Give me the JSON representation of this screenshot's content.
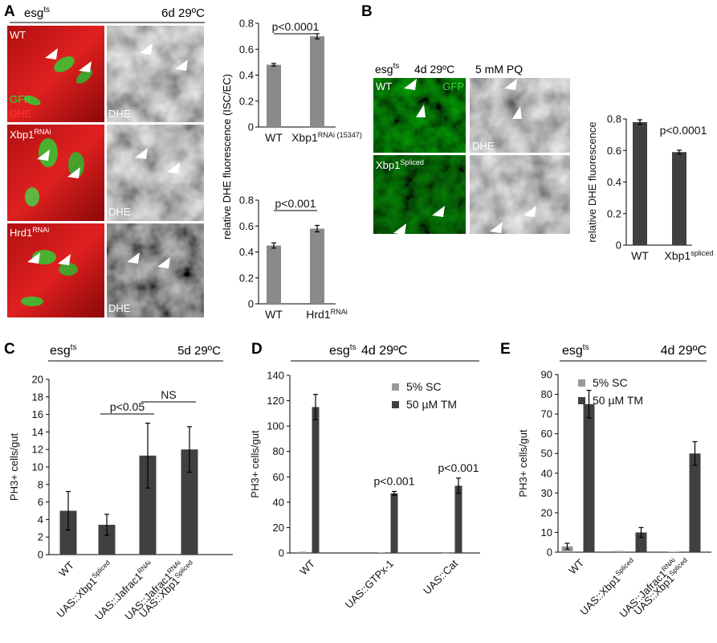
{
  "panels": {
    "A": {
      "letter": "A",
      "header_left": "esg",
      "header_left_sup": "ts",
      "header_right": "6d 29ºC",
      "images": [
        {
          "left_label": "WT",
          "left_label_sup": "",
          "right_label": "DHE",
          "extra_labels": [
            "GFP",
            "DHE"
          ]
        },
        {
          "left_label": "Xbp1",
          "left_label_sup": "RNAi",
          "right_label": "DHE",
          "extra_labels": []
        },
        {
          "left_label": "Hrd1",
          "left_label_sup": "RNAi",
          "right_label": "DHE",
          "extra_labels": []
        }
      ]
    },
    "B": {
      "letter": "B",
      "header_left": "esg",
      "header_left_sup": "ts",
      "header_mid": "4d 29ºC",
      "header_right": "5 mM PQ",
      "images": [
        {
          "left_label": "WT",
          "left_label_sup": "",
          "left_extra": "GFP",
          "right_label": "DHE"
        },
        {
          "left_label": "Xbp1",
          "left_label_sup": "Spliced",
          "left_extra": "",
          "right_label": ""
        }
      ]
    },
    "C": {
      "letter": "C",
      "header_left": "esg",
      "header_left_sup": "ts",
      "header_right": "5d 29ºC"
    },
    "D": {
      "letter": "D",
      "header_left": "esg",
      "header_left_sup": "ts",
      "header_right": "4d 29ºC"
    },
    "E": {
      "letter": "E",
      "header_left": "esg",
      "header_left_sup": "ts",
      "header_right": "4d 29ºC"
    }
  },
  "shared_ylabel_A": "relative DHE  fluorescence (ISC/EC)",
  "chart_data": [
    {
      "id": "A1",
      "type": "bar",
      "categories": [
        {
          "main": "WT",
          "sup": ""
        },
        {
          "main": "Xbp1",
          "sup": "RNAi (15347)"
        }
      ],
      "values": [
        0.48,
        0.7
      ],
      "errors": [
        0.01,
        0.02
      ],
      "ylim": [
        0,
        0.8
      ],
      "yticks": [
        "0",
        "0.2",
        "0.4",
        "0.6",
        "0.8"
      ],
      "annotations": [
        {
          "text": "p<0.0001",
          "from": 0,
          "to": 1
        }
      ],
      "bar_color": "#8a8a8a"
    },
    {
      "id": "A2",
      "type": "bar",
      "categories": [
        {
          "main": "WT",
          "sup": ""
        },
        {
          "main": "Hrd1",
          "sup": "RNAi"
        }
      ],
      "values": [
        0.45,
        0.58
      ],
      "errors": [
        0.02,
        0.025
      ],
      "ylim": [
        0,
        0.8
      ],
      "yticks": [
        "0",
        "0.2",
        "0.4",
        "0.6",
        "0.8"
      ],
      "annotations": [
        {
          "text": "p<0.001",
          "from": 0,
          "to": 1
        }
      ],
      "bar_color": "#8a8a8a"
    },
    {
      "id": "B",
      "type": "bar",
      "categories": [
        {
          "main": "WT",
          "sup": ""
        },
        {
          "main": "Xbp1",
          "sup": "spliced"
        }
      ],
      "values": [
        0.78,
        0.59
      ],
      "errors": [
        0.015,
        0.012
      ],
      "ylim": [
        0,
        0.8
      ],
      "yticks": [
        "0",
        "0.2",
        "0.4",
        "0.6",
        "0.8"
      ],
      "ylabel": "relative DHE fluorescence",
      "annotations": [
        {
          "text": "p<0.0001",
          "over": 1
        }
      ],
      "bar_color": "#404040"
    },
    {
      "id": "C",
      "type": "bar",
      "categories": [
        {
          "lines": [
            {
              "main": "WT",
              "sup": ""
            }
          ]
        },
        {
          "lines": [
            {
              "main": "UAS::Xbp1",
              "sup": "Spliced"
            }
          ]
        },
        {
          "lines": [
            {
              "main": "UAS::Jafrac1",
              "sup": "RNAi"
            }
          ]
        },
        {
          "lines": [
            {
              "main": "UAS::Jafrac1",
              "sup": "RNAi"
            },
            {
              "main": "UAS::Xbp1",
              "sup": "Spliced"
            }
          ]
        }
      ],
      "values": [
        5,
        3.4,
        11.3,
        12
      ],
      "errors": [
        2.2,
        1.2,
        3.7,
        2.6
      ],
      "ylim": [
        0,
        20
      ],
      "yticks": [
        "0",
        "2",
        "4",
        "6",
        "8",
        "10",
        "12",
        "14",
        "16",
        "18",
        "20"
      ],
      "ylabel": "PH3+ cells/gut",
      "annotations": [
        {
          "text": "p<0.05",
          "from": 1,
          "to": 2
        },
        {
          "text": "NS",
          "from": 2,
          "to": 3
        }
      ],
      "bar_color": "#404040"
    },
    {
      "id": "D",
      "type": "bar",
      "categories": [
        {
          "lines": [
            {
              "main": "WT",
              "sup": ""
            }
          ]
        },
        {
          "lines": [
            {
              "main": "UAS::GTPx-1",
              "sup": ""
            }
          ]
        },
        {
          "lines": [
            {
              "main": "UAS::Cat",
              "sup": ""
            }
          ]
        }
      ],
      "series": [
        {
          "name": "5% SC",
          "color": "#999999",
          "values": [
            1,
            0.5,
            0
          ],
          "errors": [
            0,
            0,
            0
          ]
        },
        {
          "name": "50 µM TM",
          "color": "#404040",
          "values": [
            115,
            47,
            53
          ],
          "errors": [
            10,
            1.5,
            6
          ]
        }
      ],
      "ylim": [
        0,
        140
      ],
      "yticks": [
        "0",
        "20",
        "40",
        "60",
        "80",
        "100",
        "120",
        "140"
      ],
      "ylabel": "PH3+ cells/gut",
      "annotations": [
        {
          "text": "p<0.001",
          "over": 1,
          "series": 1
        },
        {
          "text": "p<0.001",
          "over": 2,
          "series": 1
        }
      ],
      "legend": "top-right"
    },
    {
      "id": "E",
      "type": "bar",
      "categories": [
        {
          "lines": [
            {
              "main": "WT",
              "sup": ""
            }
          ]
        },
        {
          "lines": [
            {
              "main": "UAS::Xbp1",
              "sup": "Spliced"
            }
          ]
        },
        {
          "lines": [
            {
              "main": "UAS::Jafrac1",
              "sup": "RNAi"
            },
            {
              "main": "UAS::Xbp1",
              "sup": "Spliced"
            }
          ]
        }
      ],
      "series": [
        {
          "name": "5% SC",
          "color": "#999999",
          "values": [
            3,
            0.6,
            0.3
          ],
          "errors": [
            1.5,
            0,
            0
          ]
        },
        {
          "name": "50 µM TM",
          "color": "#404040",
          "values": [
            75,
            10,
            50
          ],
          "errors": [
            7,
            2.5,
            6
          ]
        }
      ],
      "ylim": [
        0,
        90
      ],
      "yticks": [
        "0",
        "10",
        "20",
        "30",
        "40",
        "50",
        "60",
        "70",
        "80",
        "90"
      ],
      "ylabel": "PH3+ cells/gut",
      "legend": "top-left"
    }
  ]
}
